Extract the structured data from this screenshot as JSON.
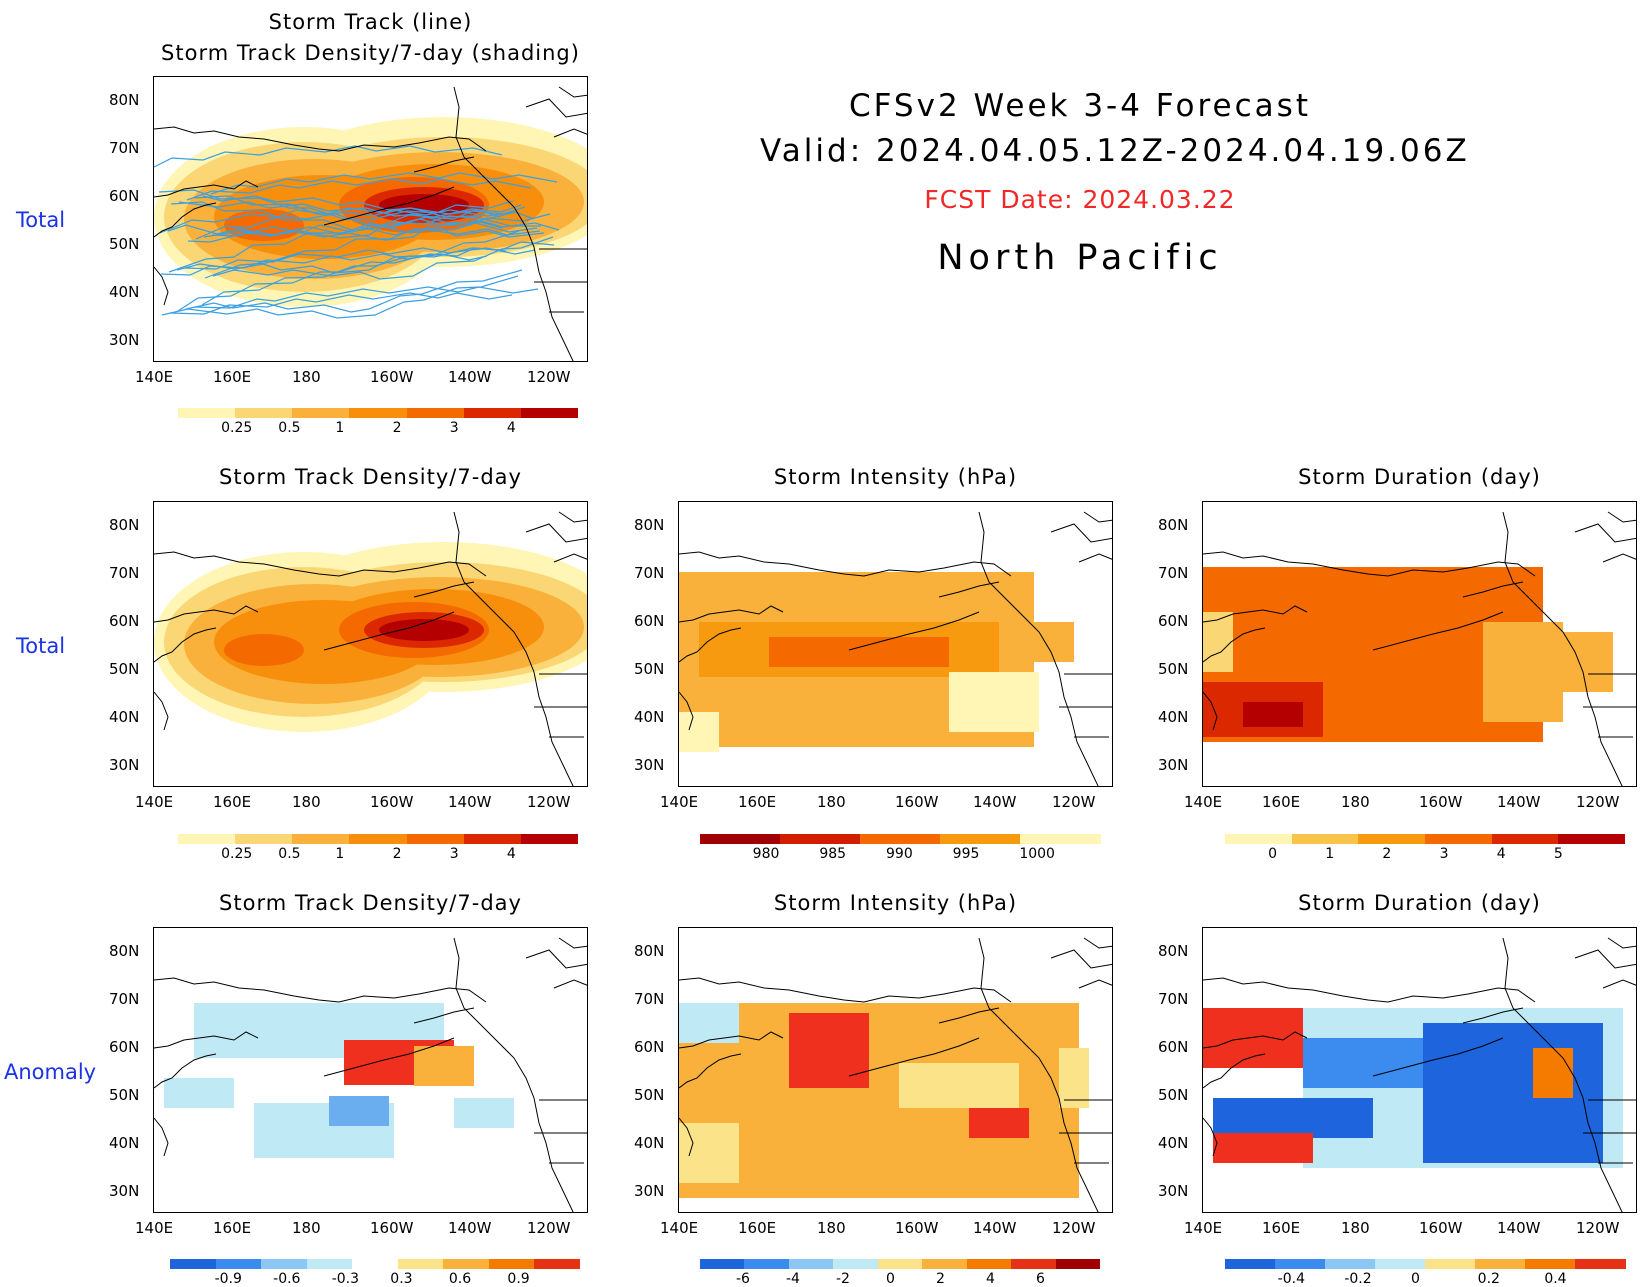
{
  "header": {
    "line1": "CFSv2 Week 3-4 Forecast",
    "line2": "Valid: 2024.04.05.12Z-2024.04.19.06Z",
    "fcst_date": "FCST Date: 2024.03.22",
    "region": "North Pacific"
  },
  "row_labels": [
    "Total",
    "Total",
    "Anomaly"
  ],
  "panels": {
    "top": {
      "title1": "Storm Track (line)",
      "title2": "Storm Track Density/7-day (shading)"
    },
    "r2c1": {
      "title": "Storm Track Density/7-day"
    },
    "r2c2": {
      "title": "Storm Intensity (hPa)"
    },
    "r2c3": {
      "title": "Storm Duration (day)"
    },
    "r3c1": {
      "title": "Storm Track Density/7-day"
    },
    "r3c2": {
      "title": "Storm Intensity (hPa)"
    },
    "r3c3": {
      "title": "Storm Duration (day)"
    }
  },
  "axes": {
    "lat_labels": [
      "80N",
      "70N",
      "60N",
      "50N",
      "40N",
      "30N"
    ],
    "lon_labels": [
      "140E",
      "160E",
      "180",
      "160W",
      "140W",
      "120W"
    ]
  },
  "colorbars": {
    "density_total": {
      "ticks": [
        "0.25",
        "0.5",
        "1",
        "2",
        "3",
        "4"
      ],
      "colors": [
        "#fff5b4",
        "#fad774",
        "#f9b13c",
        "#f78f0d",
        "#f56a00",
        "#dc2800",
        "#b40000"
      ]
    },
    "intensity_total": {
      "ticks": [
        "980",
        "985",
        "990",
        "995",
        "1000"
      ],
      "colors": [
        "#a00000",
        "#d21e00",
        "#f56a00",
        "#f79a10",
        "#fff5b4"
      ]
    },
    "duration_total": {
      "ticks": [
        "0",
        "1",
        "2",
        "3",
        "4",
        "5"
      ],
      "colors": [
        "#fff5b4",
        "#f9c44a",
        "#f79a10",
        "#f56a00",
        "#dc2800",
        "#b40000"
      ]
    },
    "density_anom": {
      "ticks": [
        "-0.9",
        "-0.6",
        "-0.3",
        "0.3",
        "0.6",
        "0.9"
      ],
      "colors": [
        "#1e64dc",
        "#3c8cf0",
        "#8cc8f5",
        "#bfeaf5",
        "#ffffff",
        "#fbe38a",
        "#f9b13c",
        "#f57a00",
        "#e63214"
      ]
    },
    "intensity_anom": {
      "ticks": [
        "-6",
        "-4",
        "-2",
        "0",
        "2",
        "4",
        "6"
      ],
      "colors": [
        "#1e64dc",
        "#3c8cf0",
        "#8cc8f5",
        "#bfeaf5",
        "#fbe38a",
        "#f9b13c",
        "#f57a00",
        "#e63214",
        "#a00000"
      ]
    },
    "duration_anom": {
      "ticks": [
        "-0.4",
        "-0.2",
        "0",
        "0.2",
        "0.4"
      ],
      "colors": [
        "#1e64dc",
        "#3c8cf0",
        "#8cc8f5",
        "#bfeaf5",
        "#fbe38a",
        "#f9b13c",
        "#f57a00",
        "#e63214"
      ]
    }
  }
}
